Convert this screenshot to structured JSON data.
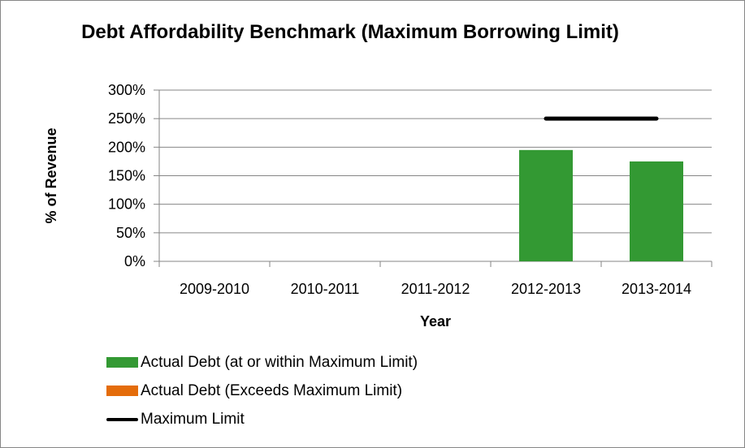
{
  "chart_data": {
    "type": "bar",
    "title": "Debt Affordability Benchmark (Maximum Borrowing Limit)",
    "xlabel": "Year",
    "ylabel": "% of Revenue",
    "categories": [
      "2009-2010",
      "2010-2011",
      "2011-2012",
      "2012-2013",
      "2013-2014"
    ],
    "ylim": [
      0,
      300
    ],
    "yticks": [
      "0%",
      "50%",
      "100%",
      "150%",
      "200%",
      "250%",
      "300%"
    ],
    "grid": true,
    "legend_position": "bottom",
    "series": [
      {
        "name": "Actual Debt (at or within Maximum Limit)",
        "type": "bar",
        "color": "#339933",
        "values": [
          null,
          null,
          null,
          195,
          175
        ]
      },
      {
        "name": "Actual Debt (Exceeds Maximum Limit)",
        "type": "bar",
        "color": "#E46C0A",
        "values": [
          null,
          null,
          null,
          null,
          null
        ]
      },
      {
        "name": "Maximum Limit",
        "type": "line",
        "color": "#000000",
        "values": [
          null,
          null,
          null,
          250,
          250
        ]
      }
    ]
  }
}
